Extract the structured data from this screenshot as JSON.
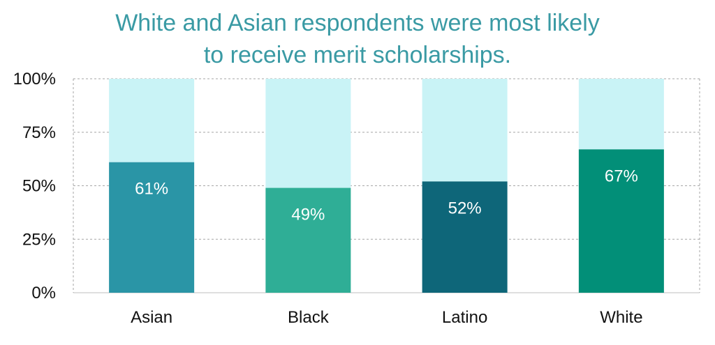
{
  "title_lines": [
    "White and Asian respondents were most likely",
    "to receive merit scholarships."
  ],
  "chart_data": {
    "type": "bar",
    "stacked": true,
    "categories": [
      "Asian",
      "Black",
      "Latino",
      "White"
    ],
    "values": [
      61,
      49,
      52,
      67
    ],
    "data_labels": [
      "61%",
      "49%",
      "52%",
      "67%"
    ],
    "title": "White and Asian respondents were most likely to receive merit scholarships.",
    "xlabel": "",
    "ylabel": "",
    "ylim": [
      0,
      100
    ],
    "yticks": [
      0,
      25,
      50,
      75,
      100
    ],
    "ytick_labels": [
      "0%",
      "25%",
      "50%",
      "75%",
      "100%"
    ],
    "grid": true,
    "legend": "none",
    "bar_colors": [
      "#2a95a6",
      "#2fae96",
      "#0e6679",
      "#028f78"
    ],
    "remainder_color": "#c9f3f6",
    "title_color": "#3a9aa4"
  }
}
